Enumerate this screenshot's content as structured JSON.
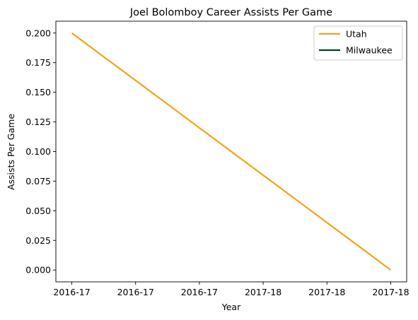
{
  "chart_data": {
    "type": "line",
    "title": "Joel Bolomboy Career Assists Per Game",
    "xlabel": "Year",
    "ylabel": "Assists Per Game",
    "x_tick_labels": [
      "2016-17",
      "2016-17",
      "2016-17",
      "2017-18",
      "2017-18",
      "2017-18"
    ],
    "x_range": [
      -0.05,
      1.05
    ],
    "ylim": [
      -0.01,
      0.21
    ],
    "y_ticks": [
      0.0,
      0.025,
      0.05,
      0.075,
      0.1,
      0.125,
      0.15,
      0.175,
      0.2
    ],
    "y_tick_labels": [
      "0.000",
      "0.025",
      "0.050",
      "0.075",
      "0.100",
      "0.125",
      "0.150",
      "0.175",
      "0.200"
    ],
    "legend_position": "top-right",
    "grid": false,
    "series": [
      {
        "name": "Utah",
        "color": "#f5a21c",
        "x": [
          0,
          1
        ],
        "values": [
          0.2,
          0.0
        ]
      },
      {
        "name": "Milwaukee",
        "color": "#00471b",
        "x": [],
        "values": []
      }
    ]
  }
}
